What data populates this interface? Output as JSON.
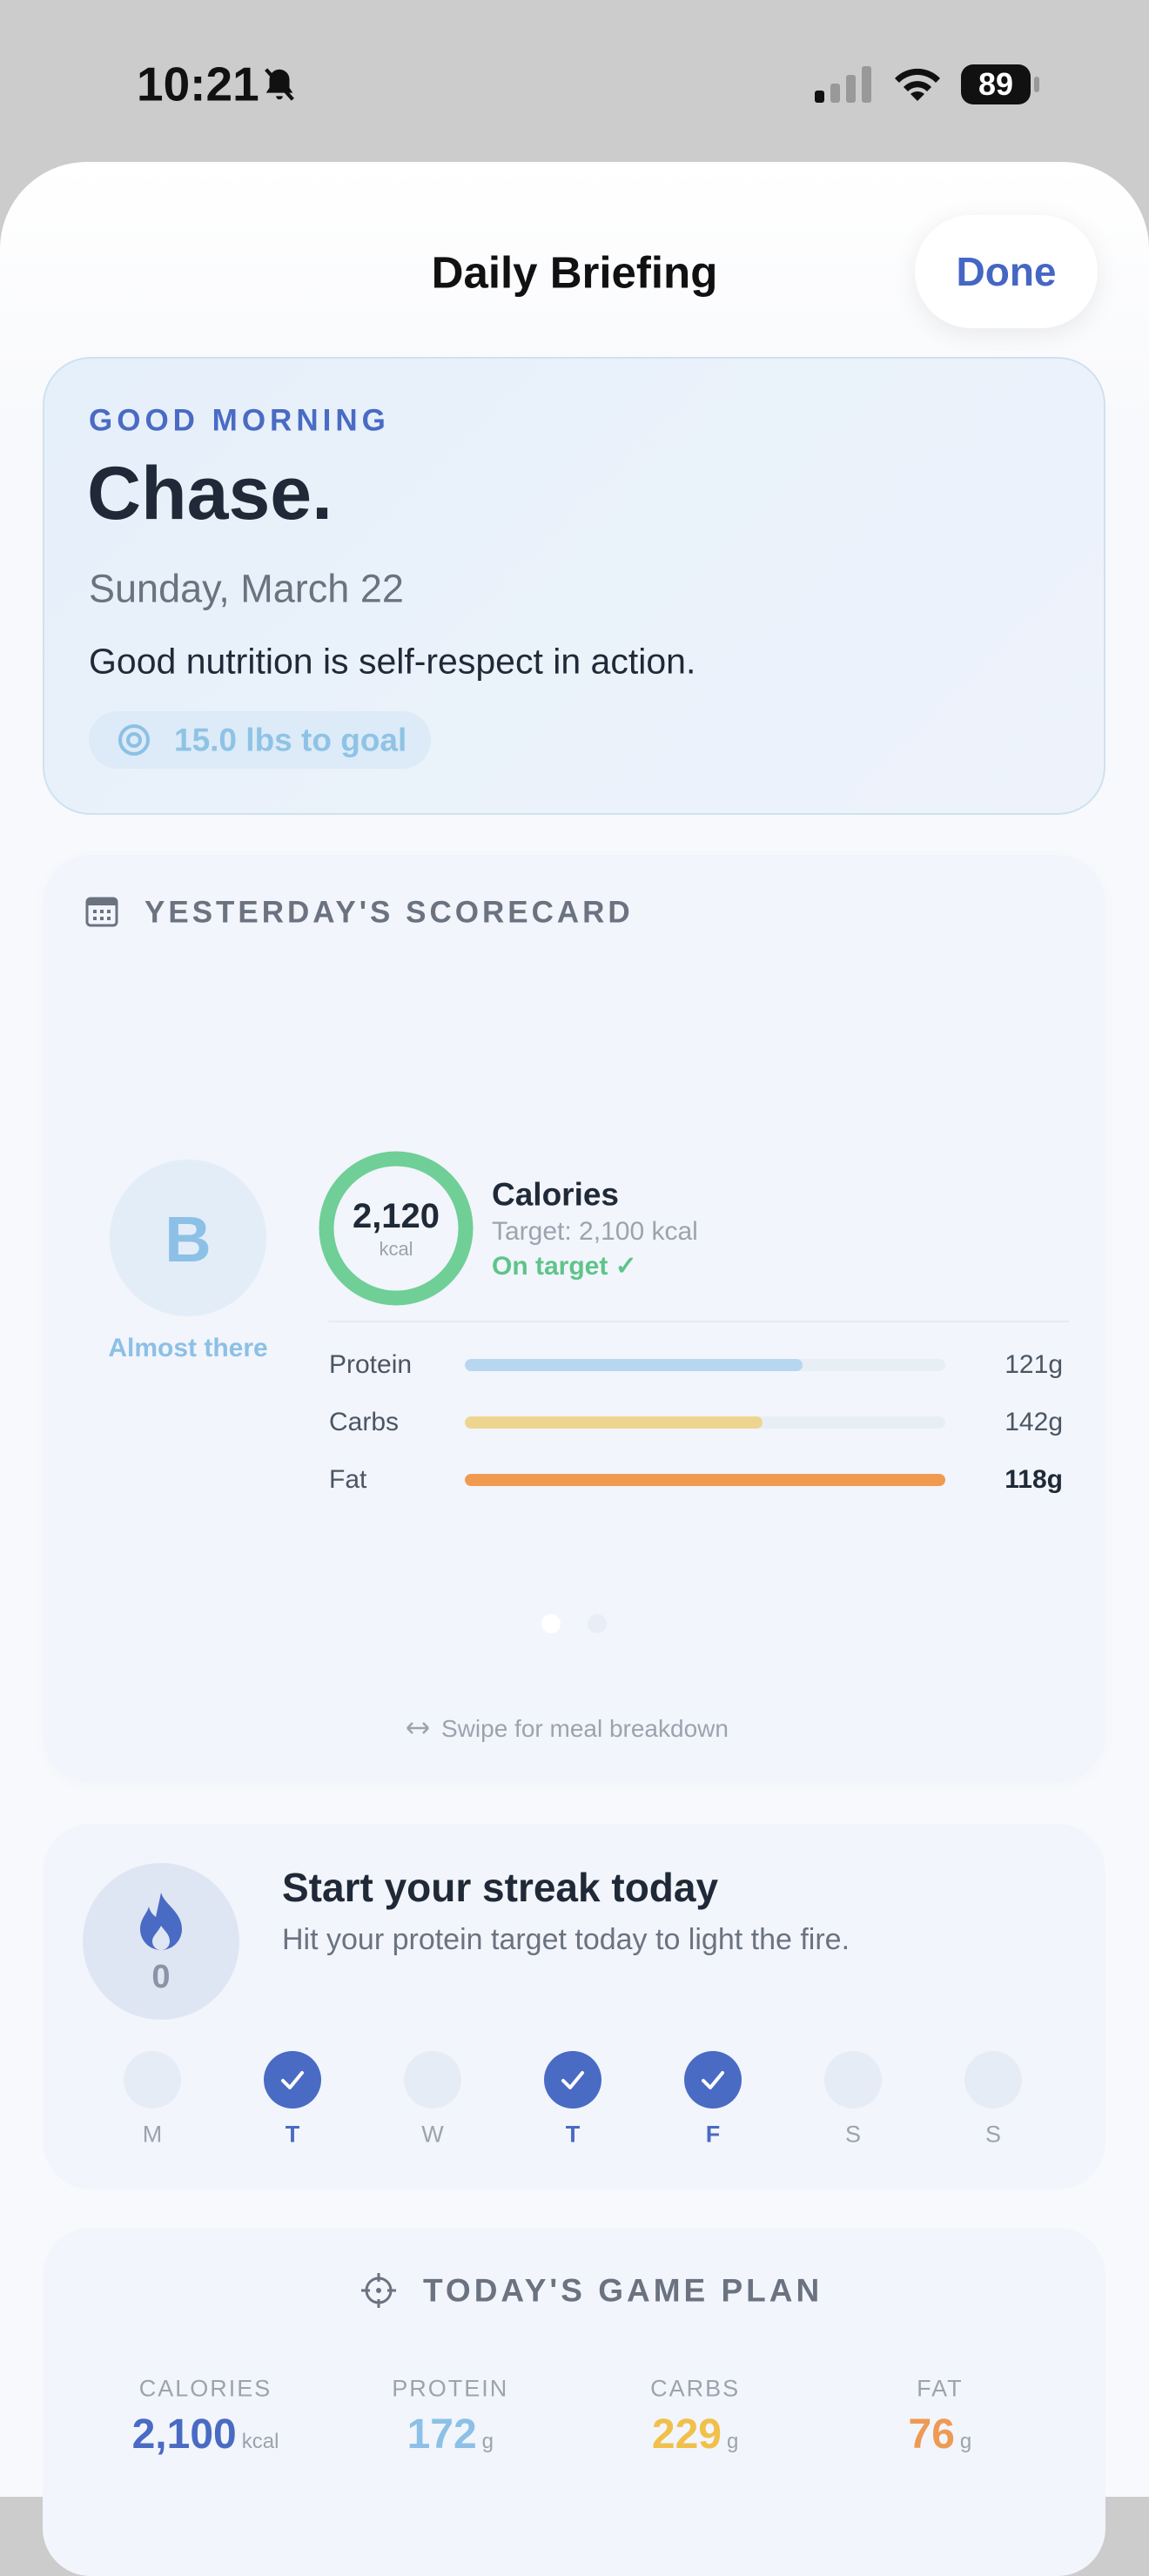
{
  "status_bar": {
    "time": "10:21",
    "battery": "89"
  },
  "header": {
    "title": "Daily Briefing",
    "done": "Done"
  },
  "greeting": {
    "eyebrow": "GOOD MORNING",
    "name": "Chase.",
    "date": "Sunday, March 22",
    "quote": "Good nutrition is self-respect in action.",
    "goal": "15.0 lbs to goal"
  },
  "scorecard": {
    "title": "YESTERDAY'S SCORECARD",
    "grade": "B",
    "grade_label": "Almost there",
    "calories": {
      "value": "2,120",
      "unit": "kcal",
      "label": "Calories",
      "target": "Target: 2,100 kcal",
      "status": "On target ✓"
    },
    "macros": [
      {
        "name": "Protein",
        "amount": 121,
        "unit": "g",
        "color": "#b7d7f0"
      },
      {
        "name": "Carbs",
        "amount": 142,
        "unit": "g",
        "color": "#eed58f"
      },
      {
        "name": "Fat",
        "amount": 118,
        "unit": "g",
        "color": "#f09a50"
      }
    ],
    "hint": "Swipe for meal breakdown"
  },
  "streak": {
    "count": "0",
    "title": "Start your streak today",
    "subtitle": "Hit your protein target today to light the fire.",
    "days": [
      {
        "label": "M",
        "done": false
      },
      {
        "label": "T",
        "done": true
      },
      {
        "label": "W",
        "done": false
      },
      {
        "label": "T",
        "done": true
      },
      {
        "label": "F",
        "done": true
      },
      {
        "label": "S",
        "done": false
      },
      {
        "label": "S",
        "done": false
      }
    ]
  },
  "game_plan": {
    "title": "TODAY'S GAME PLAN",
    "items": [
      {
        "label": "CALORIES",
        "value": "2,100",
        "unit": "kcal",
        "color": "#4a6bc4"
      },
      {
        "label": "PROTEIN",
        "value": 172,
        "unit": "g",
        "color": "#8cc0e6"
      },
      {
        "label": "CARBS",
        "value": 229,
        "unit": "g",
        "color": "#f0c04a"
      },
      {
        "label": "FAT",
        "value": 76,
        "unit": "g",
        "color": "#ee9a55"
      }
    ]
  }
}
